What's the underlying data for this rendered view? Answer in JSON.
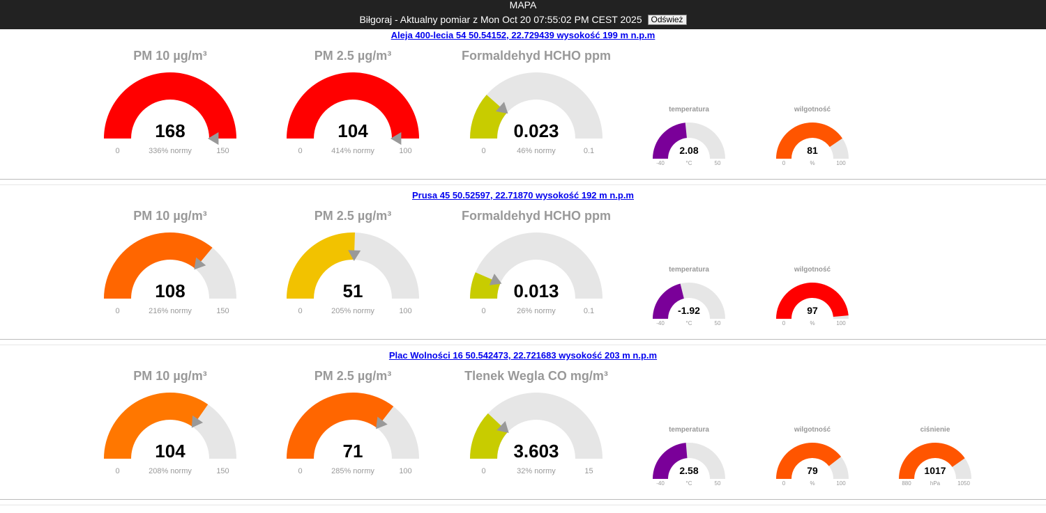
{
  "header": {
    "title": "MAPA",
    "subtitle": "Biłgoraj - Aktualny pomiar z Mon Oct 20 07:55:02 PM CEST 2025",
    "refresh_label": "Odśwież"
  },
  "stations": [
    {
      "location": "Aleja 400-lecia 54 50.54152, 22.729439 wysokość 199 m n.p.m",
      "gauges": [
        {
          "title": "PM 10 µg/m³",
          "value": "168",
          "value_num": 168,
          "min": "0",
          "max": "150",
          "min_num": 0,
          "max_num": 150,
          "note": "336% normy",
          "color": "#ff0000"
        },
        {
          "title": "PM 2.5 µg/m³",
          "value": "104",
          "value_num": 104,
          "min": "0",
          "max": "100",
          "min_num": 0,
          "max_num": 100,
          "note": "414% normy",
          "color": "#ff0000"
        },
        {
          "title": "Formaldehyd HCHO ppm",
          "value": "0.023",
          "value_num": 0.023,
          "min": "0",
          "max": "0.1",
          "min_num": 0,
          "max_num": 0.1,
          "note": "46% normy",
          "color": "#c8cc00"
        }
      ],
      "small": [
        {
          "title": "temperatura",
          "value": "2.08",
          "value_num": 2.08,
          "min": "-40",
          "max": "50",
          "min_num": -40,
          "max_num": 50,
          "unit": "°C",
          "color": "#7a0099"
        },
        {
          "title": "wilgotność",
          "value": "81",
          "value_num": 81,
          "min": "0",
          "max": "100",
          "min_num": 0,
          "max_num": 100,
          "unit": "%",
          "color": "#ff5500"
        }
      ]
    },
    {
      "location": "Prusa 45 50.52597, 22.71870 wysokość 192 m n.p.m",
      "gauges": [
        {
          "title": "PM 10 µg/m³",
          "value": "108",
          "value_num": 108,
          "min": "0",
          "max": "150",
          "min_num": 0,
          "max_num": 150,
          "note": "216% normy",
          "color": "#ff6600"
        },
        {
          "title": "PM 2.5 µg/m³",
          "value": "51",
          "value_num": 51,
          "min": "0",
          "max": "100",
          "min_num": 0,
          "max_num": 100,
          "note": "205% normy",
          "color": "#f2c200"
        },
        {
          "title": "Formaldehyd HCHO ppm",
          "value": "0.013",
          "value_num": 0.013,
          "min": "0",
          "max": "0.1",
          "min_num": 0,
          "max_num": 0.1,
          "note": "26% normy",
          "color": "#c8cc00"
        }
      ],
      "small": [
        {
          "title": "temperatura",
          "value": "-1.92",
          "value_num": -1.92,
          "min": "-40",
          "max": "50",
          "min_num": -40,
          "max_num": 50,
          "unit": "°C",
          "color": "#7a0099"
        },
        {
          "title": "wilgotność",
          "value": "97",
          "value_num": 97,
          "min": "0",
          "max": "100",
          "min_num": 0,
          "max_num": 100,
          "unit": "%",
          "color": "#ff0000"
        }
      ]
    },
    {
      "location": "Plac Wolności 16 50.542473, 22.721683 wysokość 203 m n.p.m",
      "gauges": [
        {
          "title": "PM 10 µg/m³",
          "value": "104",
          "value_num": 104,
          "min": "0",
          "max": "150",
          "min_num": 0,
          "max_num": 150,
          "note": "208% normy",
          "color": "#ff7700"
        },
        {
          "title": "PM 2.5 µg/m³",
          "value": "71",
          "value_num": 71,
          "min": "0",
          "max": "100",
          "min_num": 0,
          "max_num": 100,
          "note": "285% normy",
          "color": "#ff6600"
        },
        {
          "title": "Tlenek Wegla CO mg/m³",
          "value": "3.603",
          "value_num": 3.603,
          "min": "0",
          "max": "15",
          "min_num": 0,
          "max_num": 15,
          "note": "32% normy",
          "color": "#c8cc00"
        }
      ],
      "small": [
        {
          "title": "temperatura",
          "value": "2.58",
          "value_num": 2.58,
          "min": "-40",
          "max": "50",
          "min_num": -40,
          "max_num": 50,
          "unit": "°C",
          "color": "#7a0099"
        },
        {
          "title": "wilgotność",
          "value": "79",
          "value_num": 79,
          "min": "0",
          "max": "100",
          "min_num": 0,
          "max_num": 100,
          "unit": "%",
          "color": "#ff5500"
        },
        {
          "title": "ciśnienie",
          "value": "1017",
          "value_num": 1017,
          "min": "880",
          "max": "1050",
          "min_num": 880,
          "max_num": 1050,
          "unit": "hPa",
          "color": "#ff5500"
        }
      ]
    }
  ]
}
